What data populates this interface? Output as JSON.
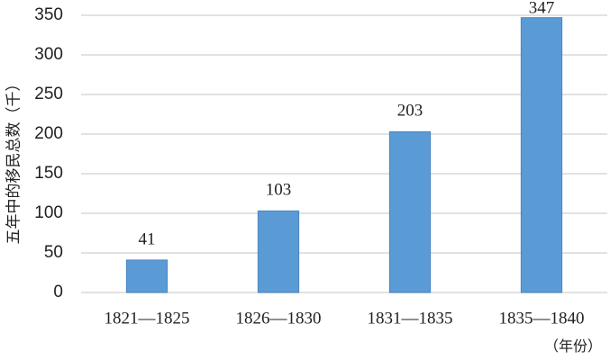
{
  "chart_data": {
    "type": "bar",
    "y_label": "五年中的移民总数（千）",
    "x_label": "（年份）",
    "categories": [
      "1821—1825",
      "1826—1830",
      "1831—1835",
      "1835—1840"
    ],
    "values": [
      41,
      103,
      203,
      347
    ],
    "color": "#5b9bd5",
    "ylim": [
      0,
      350
    ],
    "yticks": [
      0,
      50,
      100,
      150,
      200,
      250,
      300,
      350
    ],
    "grid": true
  }
}
